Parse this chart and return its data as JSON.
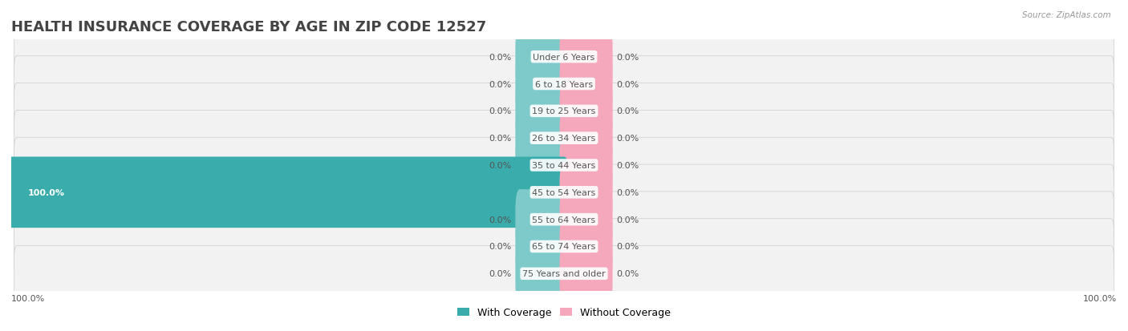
{
  "title": "HEALTH INSURANCE COVERAGE BY AGE IN ZIP CODE 12527",
  "source": "Source: ZipAtlas.com",
  "categories": [
    "Under 6 Years",
    "6 to 18 Years",
    "19 to 25 Years",
    "26 to 34 Years",
    "35 to 44 Years",
    "45 to 54 Years",
    "55 to 64 Years",
    "65 to 74 Years",
    "75 Years and older"
  ],
  "with_coverage": [
    0.0,
    0.0,
    0.0,
    0.0,
    0.0,
    100.0,
    0.0,
    0.0,
    0.0
  ],
  "without_coverage": [
    0.0,
    0.0,
    0.0,
    0.0,
    0.0,
    0.0,
    0.0,
    0.0,
    0.0
  ],
  "color_with": "#7ecaca",
  "color_without": "#f5a8bc",
  "color_with_full": "#3aacac",
  "row_bg": "#eaeaea",
  "row_bg2": "#f0f0f0",
  "label_color": "#555555",
  "title_color": "#444444",
  "axis_label_left": "100.0%",
  "axis_label_right": "100.0%",
  "legend_with": "With Coverage",
  "legend_without": "Without Coverage",
  "xlim_left": -100,
  "xlim_right": 100,
  "bar_height": 0.62,
  "stub_size": 8,
  "title_fontsize": 13,
  "label_fontsize": 8,
  "cat_fontsize": 8
}
